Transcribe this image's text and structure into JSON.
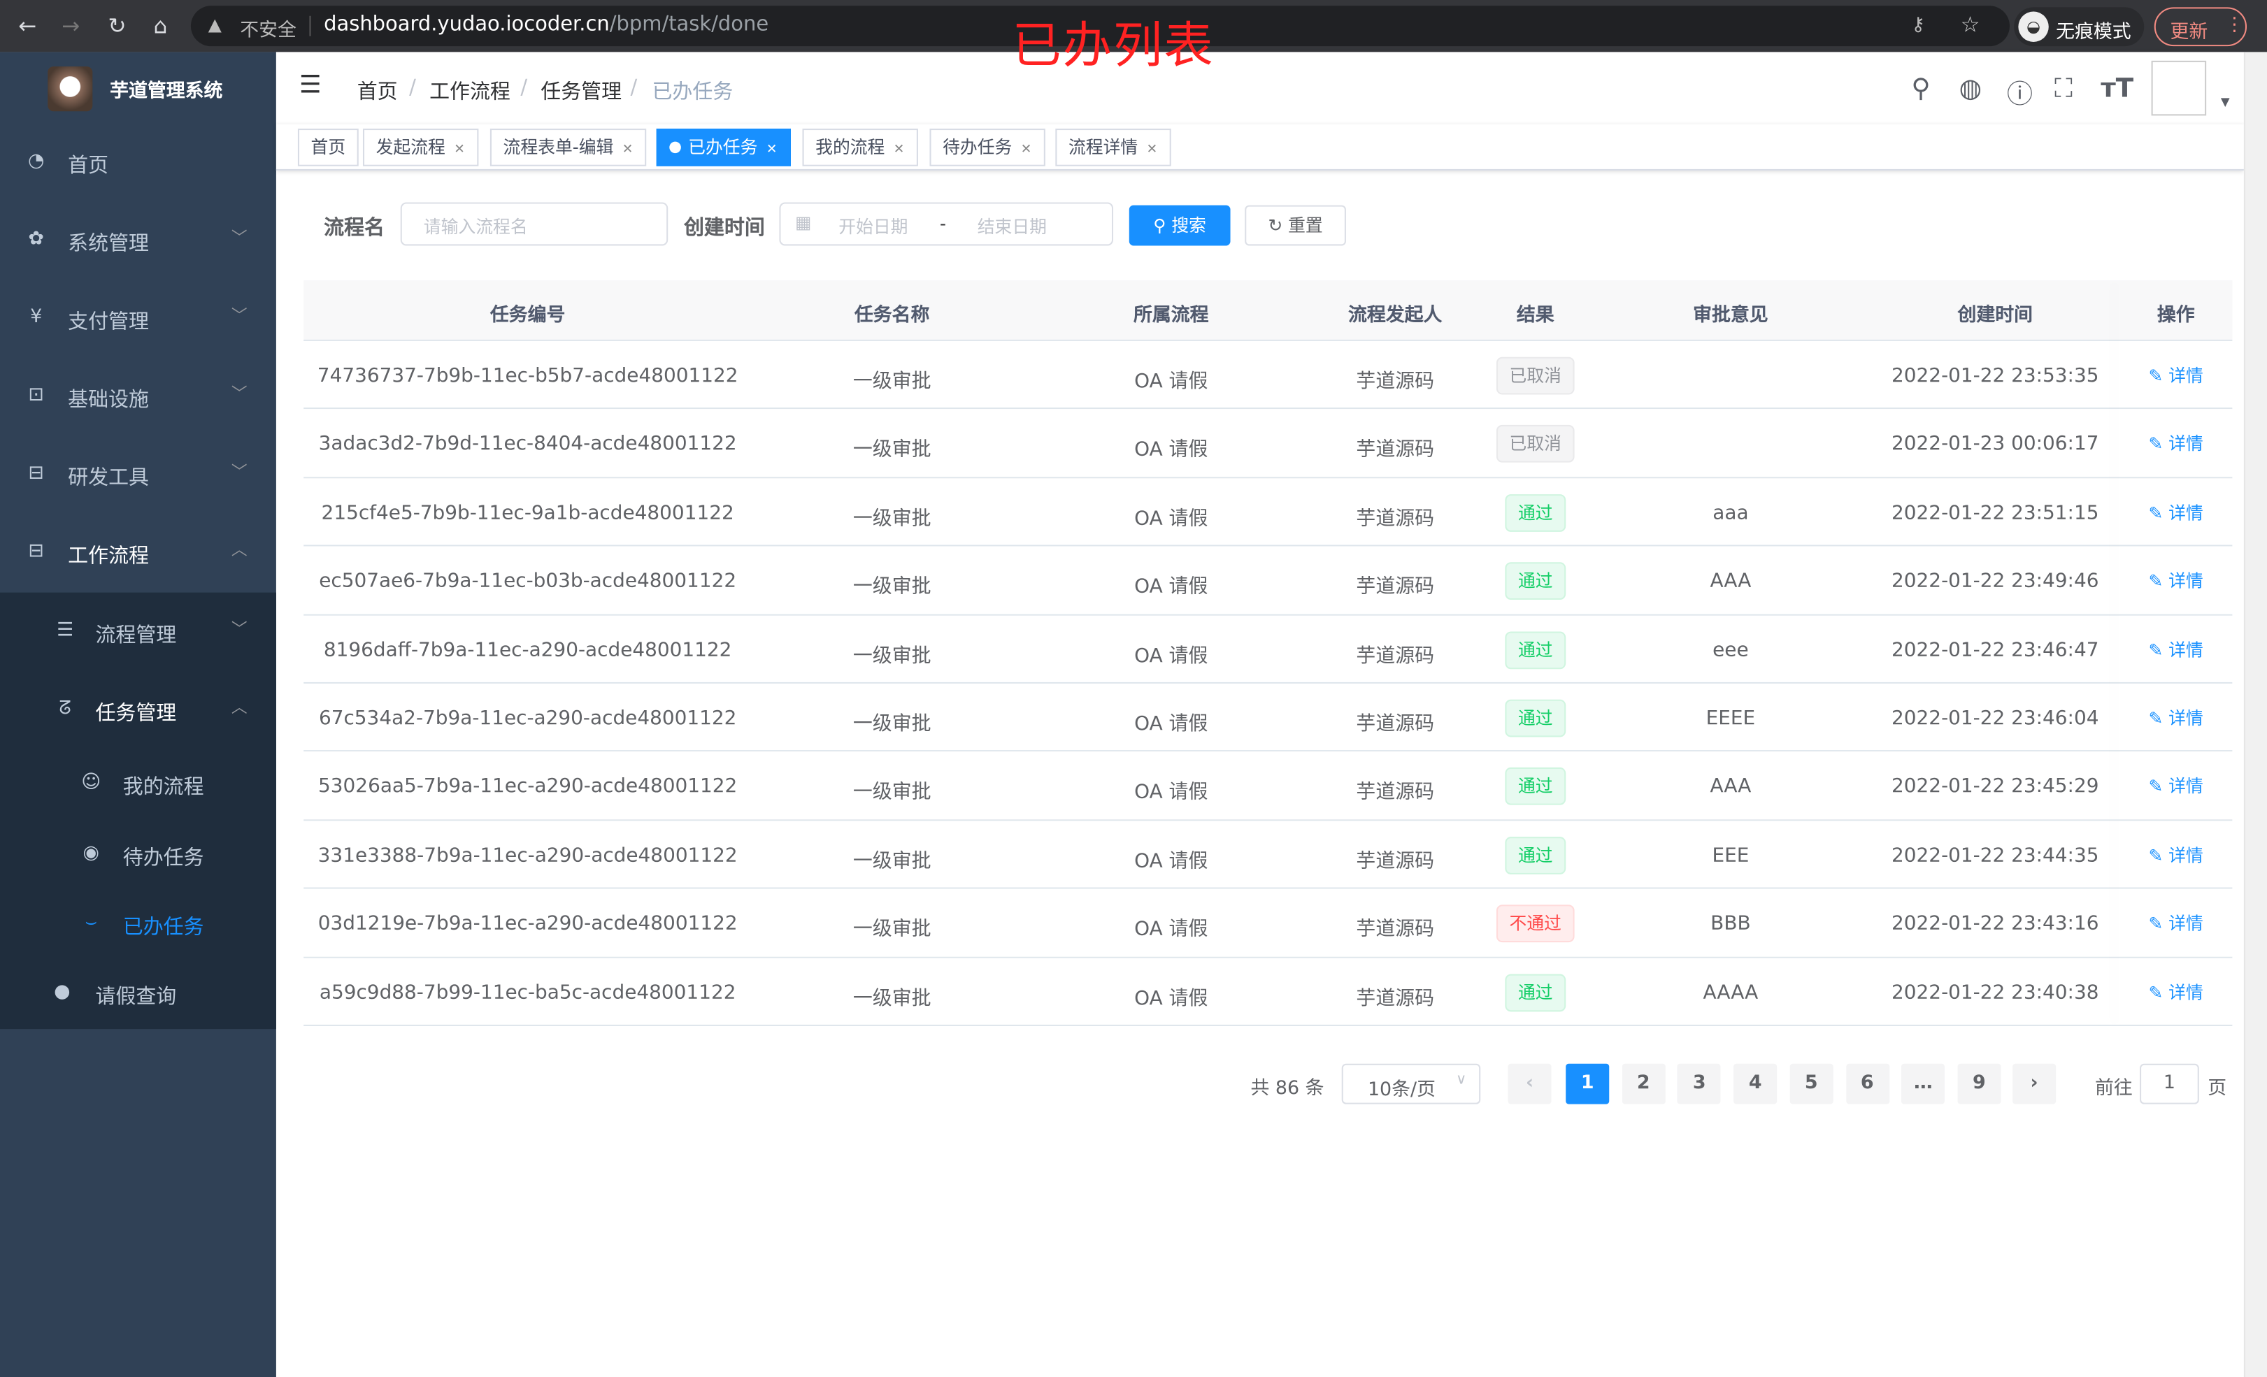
{
  "browser": {
    "insecure_label": "不安全",
    "url_host": "dashboard.yudao.iocoder.cn",
    "url_path": "/bpm/task/done",
    "incognito_label": "无痕模式",
    "update_label": "更新"
  },
  "overlay_title": "已办列表",
  "sidebar": {
    "brand": "芋道管理系统",
    "items": [
      {
        "label": "首页",
        "icon": "dashboard-icon"
      },
      {
        "label": "系统管理",
        "icon": "gear-icon"
      },
      {
        "label": "支付管理",
        "icon": "yen-icon"
      },
      {
        "label": "基础设施",
        "icon": "monitor-icon"
      },
      {
        "label": "研发工具",
        "icon": "toolbox-icon"
      },
      {
        "label": "工作流程",
        "icon": "toolbox-icon"
      }
    ],
    "sub_items": [
      {
        "label": "流程管理",
        "icon": "list-icon"
      },
      {
        "label": "任务管理",
        "icon": "task-icon"
      }
    ],
    "sub_sub_items": [
      {
        "label": "我的流程",
        "icon": "face-icon"
      },
      {
        "label": "待办任务",
        "icon": "eye-icon"
      },
      {
        "label": "已办任务",
        "icon": "eye-closed-icon",
        "active": true
      }
    ],
    "leave": {
      "label": "请假查询",
      "icon": "user-icon"
    }
  },
  "breadcrumb": [
    "首页",
    "工作流程",
    "任务管理",
    "已办任务"
  ],
  "tags": [
    {
      "label": "首页",
      "closable": false
    },
    {
      "label": "发起流程",
      "closable": true
    },
    {
      "label": "流程表单-编辑",
      "closable": true
    },
    {
      "label": "已办任务",
      "closable": true,
      "active": true
    },
    {
      "label": "我的流程",
      "closable": true
    },
    {
      "label": "待办任务",
      "closable": true
    },
    {
      "label": "流程详情",
      "closable": true
    }
  ],
  "search": {
    "name_label": "流程名",
    "name_placeholder": "请输入流程名",
    "time_label": "创建时间",
    "start_placeholder": "开始日期",
    "range_sep": "-",
    "end_placeholder": "结束日期",
    "search_label": "搜索",
    "reset_label": "重置"
  },
  "table": {
    "columns": [
      "任务编号",
      "任务名称",
      "所属流程",
      "流程发起人",
      "结果",
      "审批意见",
      "创建时间",
      "操作"
    ],
    "action_label": "详情",
    "rows": [
      {
        "id": "74736737-7b9b-11ec-b5b7-acde48001122",
        "name": "一级审批",
        "process": "OA 请假",
        "starter": "芋道源码",
        "result": "已取消",
        "status": "cancel",
        "comment": "",
        "time": "2022-01-22 23:53:35"
      },
      {
        "id": "3adac3d2-7b9d-11ec-8404-acde48001122",
        "name": "一级审批",
        "process": "OA 请假",
        "starter": "芋道源码",
        "result": "已取消",
        "status": "cancel",
        "comment": "",
        "time": "2022-01-23 00:06:17"
      },
      {
        "id": "215cf4e5-7b9b-11ec-9a1b-acde48001122",
        "name": "一级审批",
        "process": "OA 请假",
        "starter": "芋道源码",
        "result": "通过",
        "status": "pass",
        "comment": "aaa",
        "time": "2022-01-22 23:51:15"
      },
      {
        "id": "ec507ae6-7b9a-11ec-b03b-acde48001122",
        "name": "一级审批",
        "process": "OA 请假",
        "starter": "芋道源码",
        "result": "通过",
        "status": "pass",
        "comment": "AAA",
        "time": "2022-01-22 23:49:46"
      },
      {
        "id": "8196daff-7b9a-11ec-a290-acde48001122",
        "name": "一级审批",
        "process": "OA 请假",
        "starter": "芋道源码",
        "result": "通过",
        "status": "pass",
        "comment": "eee",
        "time": "2022-01-22 23:46:47"
      },
      {
        "id": "67c534a2-7b9a-11ec-a290-acde48001122",
        "name": "一级审批",
        "process": "OA 请假",
        "starter": "芋道源码",
        "result": "通过",
        "status": "pass",
        "comment": "EEEE",
        "time": "2022-01-22 23:46:04"
      },
      {
        "id": "53026aa5-7b9a-11ec-a290-acde48001122",
        "name": "一级审批",
        "process": "OA 请假",
        "starter": "芋道源码",
        "result": "通过",
        "status": "pass",
        "comment": "AAA",
        "time": "2022-01-22 23:45:29"
      },
      {
        "id": "331e3388-7b9a-11ec-a290-acde48001122",
        "name": "一级审批",
        "process": "OA 请假",
        "starter": "芋道源码",
        "result": "通过",
        "status": "pass",
        "comment": "EEE",
        "time": "2022-01-22 23:44:35"
      },
      {
        "id": "03d1219e-7b9a-11ec-a290-acde48001122",
        "name": "一级审批",
        "process": "OA 请假",
        "starter": "芋道源码",
        "result": "不通过",
        "status": "reject",
        "comment": "BBB",
        "time": "2022-01-22 23:43:16"
      },
      {
        "id": "a59c9d88-7b99-11ec-ba5c-acde48001122",
        "name": "一级审批",
        "process": "OA 请假",
        "starter": "芋道源码",
        "result": "通过",
        "status": "pass",
        "comment": "AAAA",
        "time": "2022-01-22 23:40:38"
      }
    ]
  },
  "pagination": {
    "total_label": "共 86 条",
    "page_size": "10条/页",
    "pages": [
      "1",
      "2",
      "3",
      "4",
      "5",
      "6",
      "…",
      "9"
    ],
    "current": "1",
    "goto_label": "前往",
    "goto_value": "1",
    "page_suffix": "页"
  },
  "colors": {
    "accent": "#1890ff",
    "sidebar_bg": "#304156",
    "submenu_bg": "#1f2d3d",
    "pass": "#13ce66",
    "reject": "#ff4949",
    "cancel": "#909399"
  }
}
